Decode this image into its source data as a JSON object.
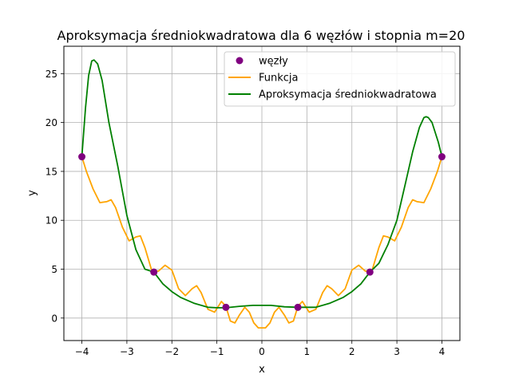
{
  "chart_data": {
    "type": "line",
    "title": "Aproksymacja średniokwadratowa dla 6 węzłów i stopnia m=20",
    "xlabel": "x",
    "ylabel": "y",
    "xlim": [
      -4.4,
      4.4
    ],
    "ylim": [
      -2.3,
      27.8
    ],
    "xticks": [
      -4,
      -3,
      -2,
      -1,
      0,
      1,
      2,
      3,
      4
    ],
    "yticks": [
      0,
      5,
      10,
      15,
      20,
      25
    ],
    "grid": true,
    "legend_position": "top-right",
    "series": [
      {
        "name": "węzły",
        "kind": "scatter",
        "color": "#800080",
        "x": [
          -4.0,
          -2.4,
          -0.8,
          0.8,
          2.4,
          4.0
        ],
        "y": [
          16.5,
          4.7,
          1.1,
          1.1,
          4.7,
          16.5
        ]
      },
      {
        "name": "Funkcja",
        "kind": "line",
        "color": "#ffa500",
        "x": [
          -4.0,
          -3.9,
          -3.75,
          -3.6,
          -3.45,
          -3.35,
          -3.25,
          -3.1,
          -2.95,
          -2.8,
          -2.7,
          -2.6,
          -2.45,
          -2.3,
          -2.15,
          -2.0,
          -1.85,
          -1.7,
          -1.55,
          -1.45,
          -1.35,
          -1.2,
          -1.05,
          -0.9,
          -0.8,
          -0.7,
          -0.6,
          -0.5,
          -0.38,
          -0.28,
          -0.18,
          -0.08,
          0.0,
          0.08,
          0.18,
          0.28,
          0.38,
          0.5,
          0.6,
          0.7,
          0.8,
          0.9,
          1.05,
          1.2,
          1.35,
          1.45,
          1.55,
          1.7,
          1.85,
          2.0,
          2.15,
          2.3,
          2.45,
          2.6,
          2.7,
          2.8,
          2.95,
          3.1,
          3.25,
          3.35,
          3.45,
          3.6,
          3.75,
          3.9,
          4.0
        ],
        "y": [
          16.5,
          15.0,
          13.2,
          11.8,
          11.9,
          12.1,
          11.3,
          9.3,
          7.9,
          8.3,
          8.4,
          7.2,
          4.9,
          4.8,
          5.4,
          4.9,
          3.0,
          2.3,
          3.0,
          3.3,
          2.6,
          0.9,
          0.6,
          1.7,
          1.2,
          -0.3,
          -0.5,
          0.3,
          1.1,
          0.6,
          -0.5,
          -1.0,
          -1.0,
          -1.0,
          -0.5,
          0.6,
          1.1,
          0.3,
          -0.5,
          -0.3,
          1.2,
          1.7,
          0.6,
          0.9,
          2.6,
          3.3,
          3.0,
          2.3,
          3.0,
          4.9,
          5.4,
          4.8,
          4.9,
          7.2,
          8.4,
          8.3,
          7.9,
          9.3,
          11.3,
          12.1,
          11.9,
          11.8,
          13.2,
          15.0,
          16.5
        ]
      },
      {
        "name": "Aproksymacja średniokwadratowa",
        "kind": "line",
        "color": "#008000",
        "x": [
          -4.0,
          -3.92,
          -3.85,
          -3.78,
          -3.73,
          -3.65,
          -3.55,
          -3.4,
          -3.2,
          -3.0,
          -2.8,
          -2.6,
          -2.4,
          -2.2,
          -2.0,
          -1.8,
          -1.5,
          -1.2,
          -1.0,
          -0.8,
          -0.5,
          -0.2,
          0.0,
          0.2,
          0.5,
          0.8,
          1.0,
          1.2,
          1.5,
          1.8,
          2.0,
          2.2,
          2.4,
          2.6,
          2.8,
          3.0,
          3.2,
          3.35,
          3.5,
          3.6,
          3.65,
          3.7,
          3.78,
          3.85,
          3.92,
          4.0
        ],
        "y": [
          16.5,
          21.5,
          24.8,
          26.3,
          26.4,
          26.0,
          24.3,
          20.0,
          15.5,
          10.5,
          7.0,
          5.0,
          4.7,
          3.5,
          2.7,
          2.1,
          1.5,
          1.1,
          1.05,
          1.05,
          1.2,
          1.3,
          1.3,
          1.3,
          1.15,
          1.1,
          1.1,
          1.1,
          1.5,
          2.1,
          2.7,
          3.5,
          4.7,
          5.6,
          7.5,
          10.0,
          14.0,
          17.0,
          19.5,
          20.5,
          20.6,
          20.5,
          20.0,
          19.0,
          18.0,
          16.5
        ]
      }
    ]
  }
}
